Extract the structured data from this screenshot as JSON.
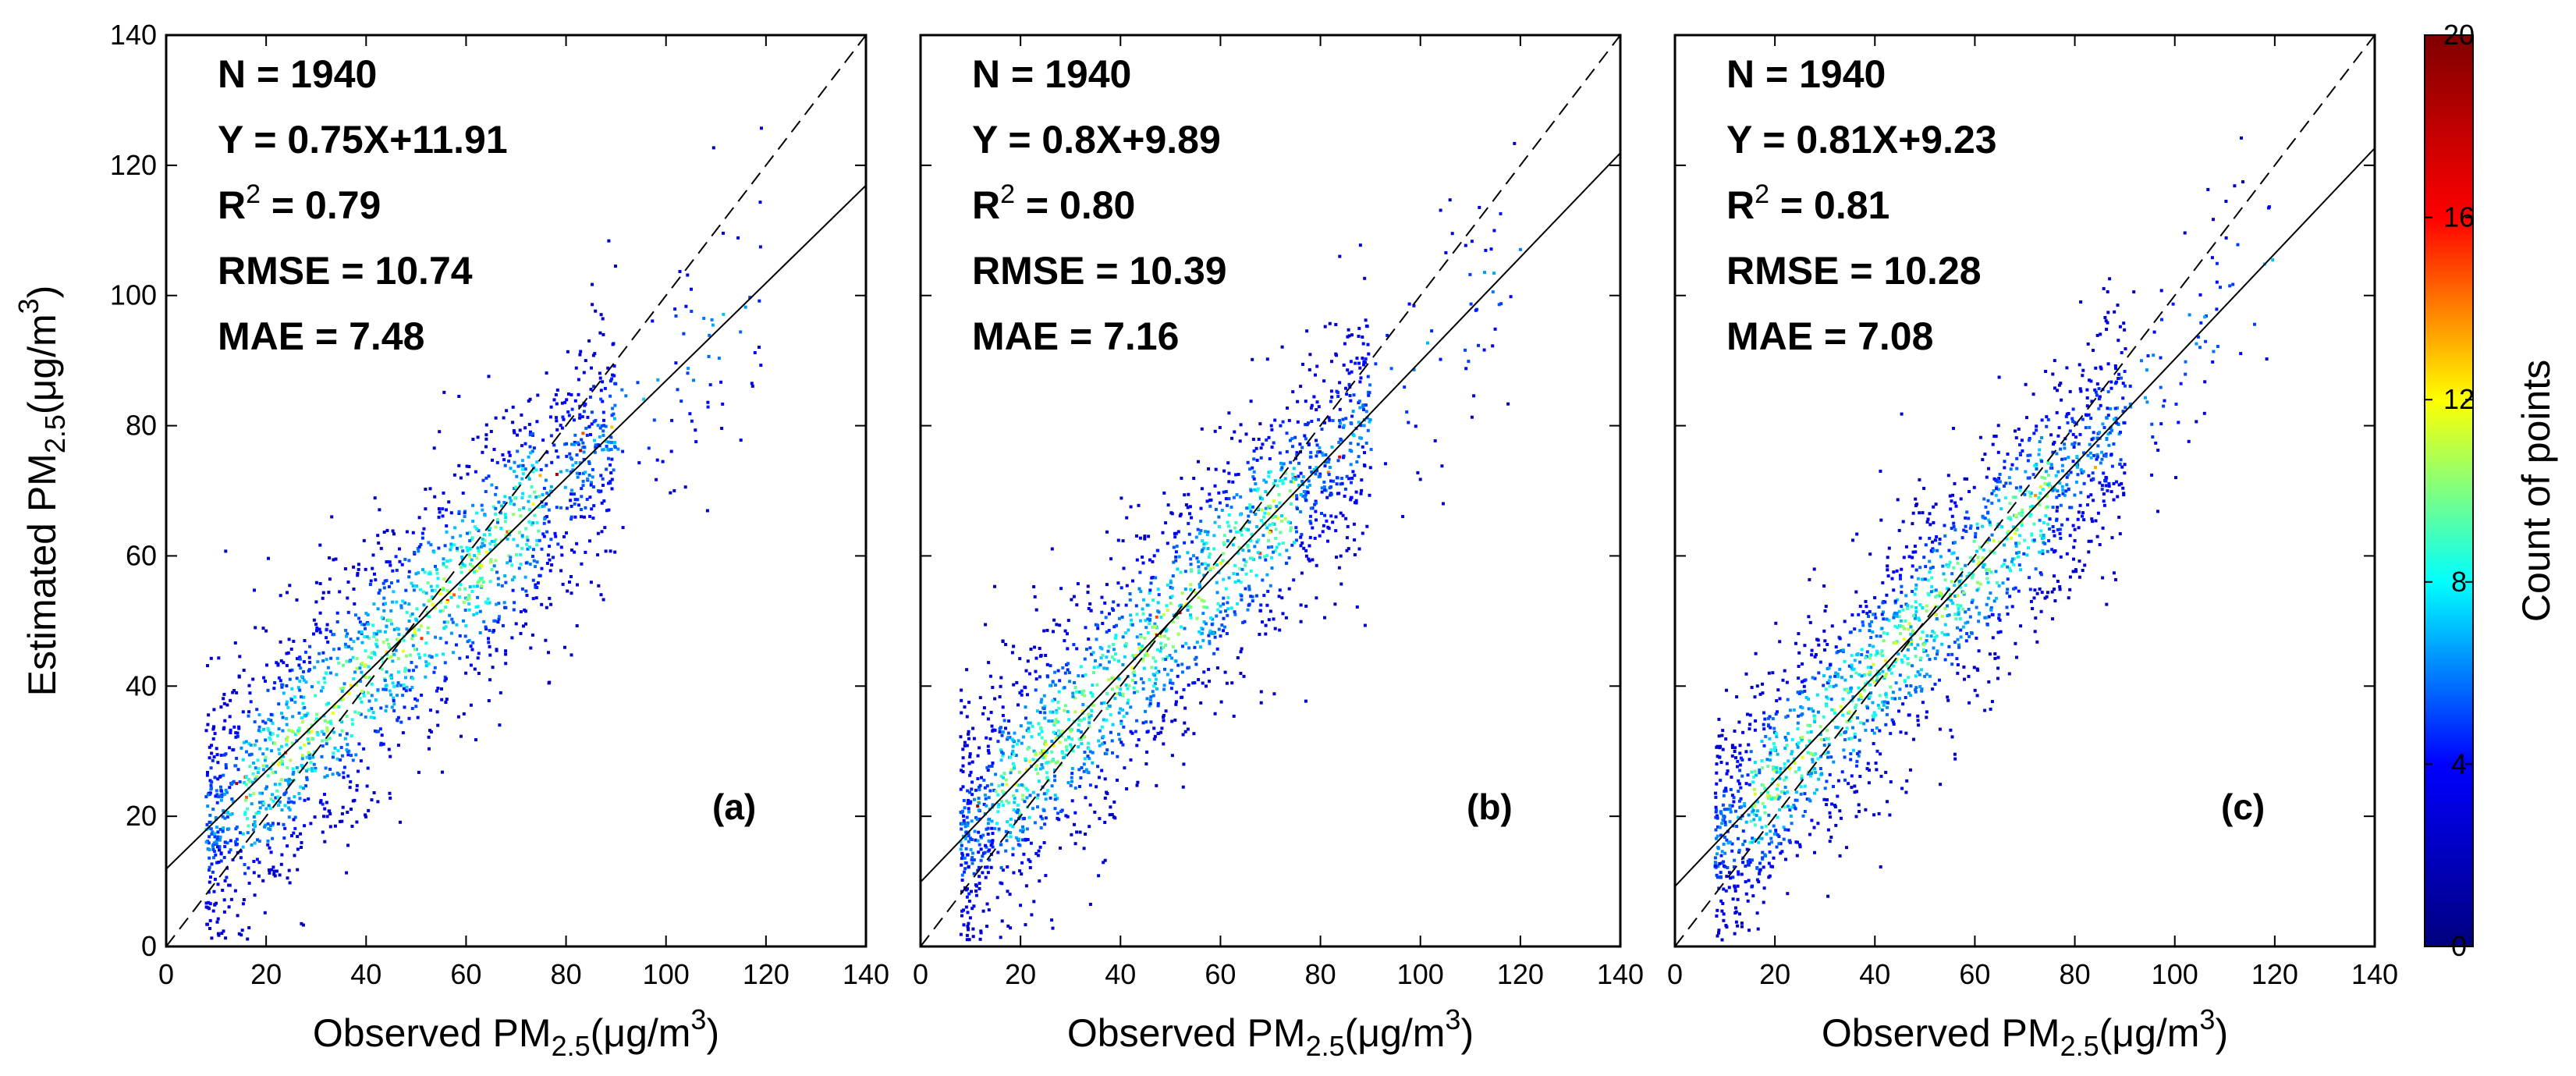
{
  "chart_data": [
    {
      "type": "scatter",
      "panel_label": "(a)",
      "xlabel": "Observed PM2.5(μg/m3)",
      "ylabel": "Estimated PM2.5(μg/m3)",
      "xlim": [
        0,
        140
      ],
      "ylim": [
        0,
        140
      ],
      "xticks": [
        0,
        20,
        40,
        60,
        80,
        100,
        120,
        140
      ],
      "yticks": [
        0,
        20,
        40,
        60,
        80,
        100,
        120,
        140
      ],
      "fit": {
        "slope": 0.75,
        "intercept": 11.91
      },
      "one_to_one_line": true,
      "stats": [
        "N = 1940",
        "Y = 0.75X+11.91",
        "R2 = 0.79",
        "RMSE = 10.74",
        "MAE = 7.48"
      ]
    },
    {
      "type": "scatter",
      "panel_label": "(b)",
      "xlabel": "Observed PM2.5(μg/m3)",
      "xlim": [
        0,
        140
      ],
      "ylim": [
        0,
        140
      ],
      "xticks": [
        0,
        20,
        40,
        60,
        80,
        100,
        120,
        140
      ],
      "fit": {
        "slope": 0.8,
        "intercept": 9.89
      },
      "one_to_one_line": true,
      "stats": [
        "N = 1940",
        "Y = 0.8X+9.89",
        "R2 = 0.80",
        "RMSE = 10.39",
        "MAE = 7.16"
      ]
    },
    {
      "type": "scatter",
      "panel_label": "(c)",
      "xlabel": "Observed PM2.5(μg/m3)",
      "xlim": [
        0,
        140
      ],
      "ylim": [
        0,
        140
      ],
      "xticks": [
        0,
        20,
        40,
        60,
        80,
        100,
        120,
        140
      ],
      "fit": {
        "slope": 0.81,
        "intercept": 9.23
      },
      "one_to_one_line": true,
      "stats": [
        "N = 1940",
        "Y = 0.81X+9.23",
        "R2 = 0.81",
        "RMSE = 10.28",
        "MAE = 7.08"
      ]
    }
  ],
  "colorbar": {
    "label": "Count of points",
    "range": [
      0,
      20
    ],
    "ticks": [
      0,
      4,
      8,
      12,
      16,
      20
    ],
    "colormap": "jet",
    "colors": [
      "#00007f",
      "#0000ff",
      "#00ffff",
      "#ffff00",
      "#ff0000",
      "#7f0000"
    ]
  },
  "point_count": 1940
}
